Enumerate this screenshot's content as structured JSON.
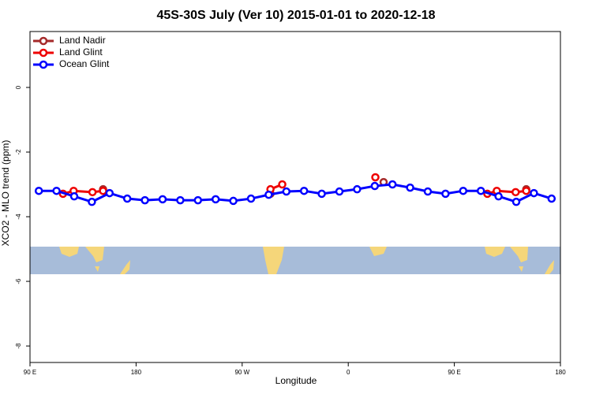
{
  "chart_data": {
    "type": "line",
    "title": "45S-30S July (Ver 10)   2015-01-01 to 2020-12-18",
    "x_label": "Longitude",
    "y_label": "XCO2 - MLO trend (ppm)",
    "xlim": [
      90,
      540
    ],
    "xticks": [
      {
        "value": 90,
        "label": "90 E"
      },
      180,
      {
        "value": 270,
        "label": "90 W"
      },
      {
        "value": 360,
        "label": "0"
      },
      {
        "value": 450,
        "label": "90 E"
      },
      {
        "value": 540,
        "label": "180"
      }
    ],
    "ylim": [
      -8.51,
      1.73
    ],
    "yticks": [
      0,
      -2,
      -4,
      -6,
      -8
    ],
    "legend": "top-left",
    "series": [
      {
        "name": "Land Nadir",
        "color": "#a52a2a",
        "x": [
          152,
          220,
          294,
          340,
          390,
          450,
          511
        ],
        "values": [
          -3.15,
          null,
          -3.29,
          null,
          -2.93,
          null,
          -3.15
        ]
      },
      {
        "name": "Land Glint",
        "color": "#ee0000",
        "x": [
          118,
          127,
          143,
          152,
          220,
          294,
          304,
          340,
          383,
          430,
          478,
          486,
          502,
          511
        ],
        "values": [
          -3.29,
          -3.2,
          -3.24,
          -3.2,
          null,
          -3.15,
          -3.0,
          null,
          -2.78,
          null,
          -3.29,
          -3.2,
          -3.24,
          -3.2
        ]
      },
      {
        "name": "Ocean Glint",
        "color": "#0000ff",
        "x": [
          97.5,
          112.5,
          127.5,
          142.5,
          157.5,
          172.5,
          187.5,
          202.5,
          217.5,
          232.5,
          247.5,
          262.5,
          277.5,
          292.5,
          307.5,
          322.5,
          337.5,
          352.5,
          367.5,
          382.5,
          397.5,
          412.5,
          427.5,
          442.5,
          457.5,
          472.5,
          487.5,
          502.5,
          517.5,
          532.5
        ],
        "values": [
          -3.2,
          -3.2,
          -3.37,
          -3.54,
          -3.27,
          -3.44,
          -3.49,
          -3.46,
          -3.49,
          -3.49,
          -3.46,
          -3.51,
          -3.44,
          -3.32,
          -3.22,
          -3.2,
          -3.29,
          -3.22,
          -3.15,
          -3.05,
          -3.0,
          -3.1,
          -3.22,
          -3.29,
          -3.2,
          -3.2,
          -3.37,
          -3.54,
          -3.27,
          -3.44
        ]
      }
    ]
  }
}
